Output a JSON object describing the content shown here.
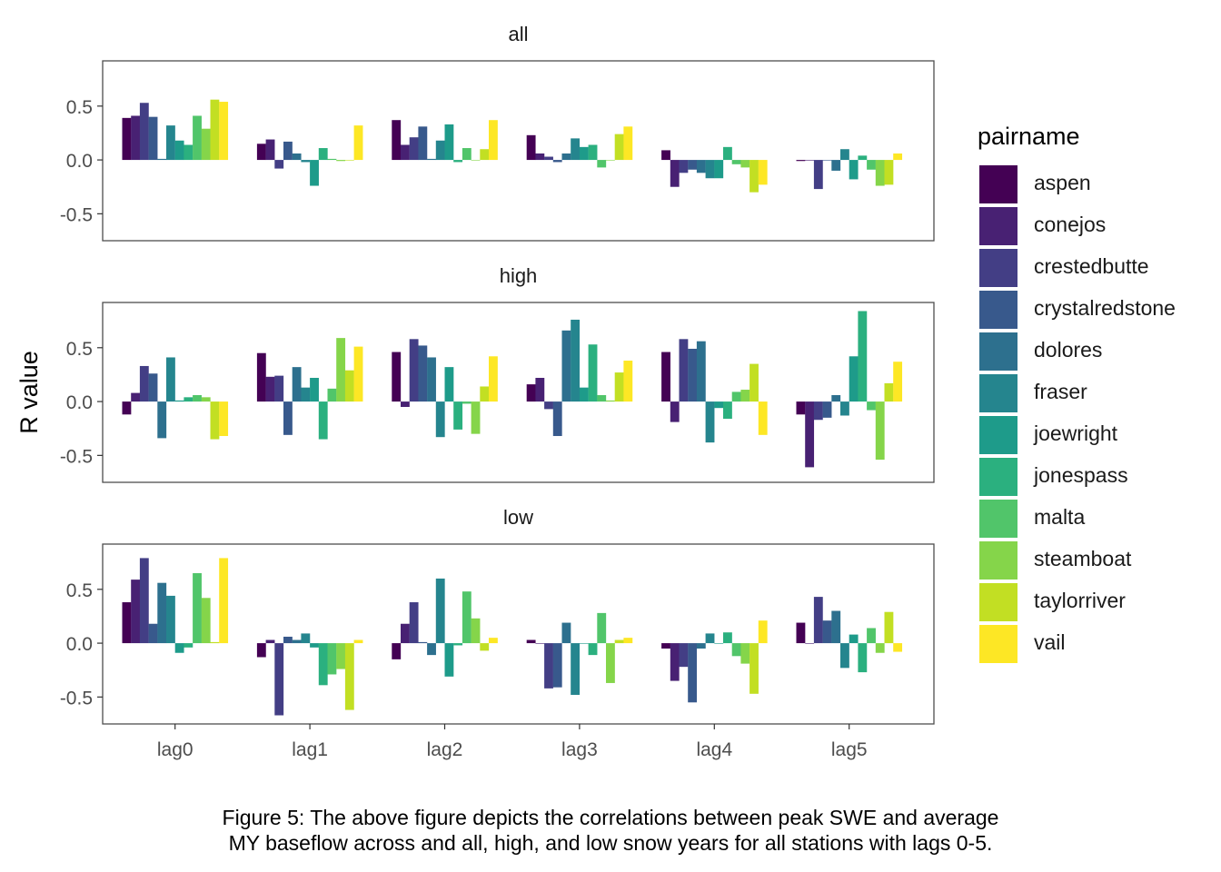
{
  "chart_data": {
    "type": "bar",
    "ylabel": "R value",
    "yticks": [
      -0.5,
      0.0,
      0.5
    ],
    "ytick_labels": [
      "-0.5",
      "0.0",
      "0.5"
    ],
    "ylim": [
      -0.75,
      0.92
    ],
    "grid": false,
    "legend_position": "right",
    "legend_title": "pairname",
    "categories": [
      "lag0",
      "lag1",
      "lag2",
      "lag3",
      "lag4",
      "lag5"
    ],
    "series_names": [
      "aspen",
      "conejos",
      "crestedbutte",
      "crystalredstone",
      "dolores",
      "fraser",
      "joewright",
      "jonespass",
      "malta",
      "steamboat",
      "taylorriver",
      "vail"
    ],
    "colors": [
      "#440154",
      "#482173",
      "#433E85",
      "#38598C",
      "#2D708E",
      "#25858E",
      "#1E9B8A",
      "#2BB07F",
      "#51C56A",
      "#85D54A",
      "#C2DF23",
      "#FDE725"
    ],
    "panels": [
      {
        "name": "all",
        "values": [
          [
            0.39,
            0.41,
            0.53,
            0.4,
            0.01,
            0.32,
            0.18,
            0.14,
            0.41,
            0.29,
            0.56,
            0.54
          ],
          [
            0.15,
            0.19,
            -0.08,
            0.17,
            0.06,
            -0.02,
            -0.24,
            0.11,
            0.01,
            -0.01,
            0.0,
            0.32
          ],
          [
            0.37,
            0.14,
            0.21,
            0.31,
            0.01,
            0.18,
            0.33,
            -0.02,
            0.11,
            0.0,
            0.1,
            0.37
          ],
          [
            0.23,
            0.06,
            0.03,
            -0.02,
            0.06,
            0.2,
            0.12,
            0.14,
            -0.07,
            0.0,
            0.24,
            0.31
          ],
          [
            0.09,
            -0.25,
            -0.12,
            -0.09,
            -0.12,
            -0.17,
            -0.17,
            0.12,
            -0.04,
            -0.07,
            -0.3,
            -0.23
          ],
          [
            -0.01,
            0.0,
            -0.27,
            0.0,
            -0.1,
            0.1,
            -0.18,
            0.04,
            -0.09,
            -0.24,
            -0.23,
            0.06
          ]
        ]
      },
      {
        "name": "high",
        "values": [
          [
            -0.12,
            0.08,
            0.33,
            0.26,
            -0.34,
            0.41,
            0.01,
            0.04,
            0.06,
            0.04,
            -0.35,
            -0.32
          ],
          [
            0.45,
            0.23,
            0.24,
            -0.31,
            0.32,
            0.13,
            0.22,
            -0.35,
            0.12,
            0.59,
            0.29,
            0.51
          ],
          [
            0.46,
            -0.05,
            0.58,
            0.52,
            0.41,
            -0.33,
            0.32,
            -0.26,
            -0.02,
            -0.3,
            0.14,
            0.42
          ],
          [
            0.16,
            0.22,
            -0.07,
            -0.32,
            0.66,
            0.76,
            0.13,
            0.53,
            0.06,
            0.01,
            0.27,
            0.38
          ],
          [
            0.46,
            -0.19,
            0.58,
            0.49,
            0.56,
            -0.38,
            -0.06,
            -0.16,
            0.09,
            0.11,
            0.35,
            -0.31
          ],
          [
            -0.12,
            -0.61,
            -0.17,
            -0.15,
            0.06,
            -0.13,
            0.42,
            0.84,
            -0.08,
            -0.54,
            0.17,
            0.37
          ]
        ]
      },
      {
        "name": "low",
        "values": [
          [
            0.38,
            0.59,
            0.79,
            0.18,
            0.56,
            0.44,
            -0.09,
            -0.04,
            0.65,
            0.42,
            0.01,
            0.79
          ],
          [
            -0.13,
            0.03,
            -0.67,
            0.06,
            0.03,
            0.09,
            -0.04,
            -0.39,
            -0.29,
            -0.24,
            -0.62,
            0.03
          ],
          [
            -0.15,
            0.18,
            0.38,
            0.01,
            -0.11,
            0.6,
            -0.31,
            -0.02,
            0.48,
            0.23,
            -0.07,
            0.05
          ],
          [
            0.03,
            0.0,
            -0.42,
            -0.41,
            0.19,
            -0.48,
            0.0,
            -0.11,
            0.28,
            -0.37,
            0.03,
            0.05
          ],
          [
            -0.05,
            -0.35,
            -0.22,
            -0.55,
            -0.05,
            0.09,
            0.0,
            0.1,
            -0.12,
            -0.19,
            -0.47,
            0.21
          ],
          [
            0.19,
            0.0,
            0.43,
            0.21,
            0.3,
            -0.23,
            0.08,
            -0.27,
            0.14,
            -0.09,
            0.29,
            -0.08
          ]
        ]
      }
    ]
  },
  "caption": {
    "line1": "Figure 5: The above figure depicts the correlations between peak SWE and average",
    "line2": "MY baseflow across and all, high, and low snow years for all stations with lags 0-5."
  }
}
